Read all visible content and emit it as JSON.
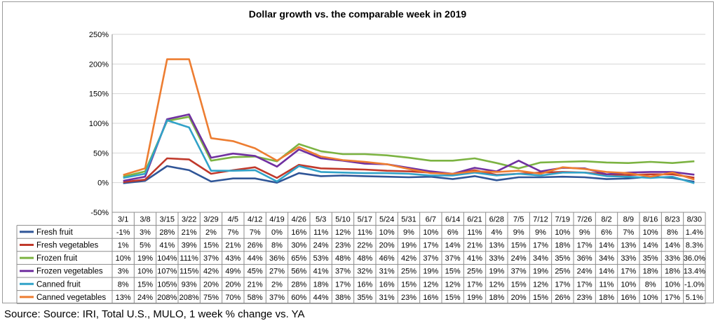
{
  "source": "Source: Source: IRI, Total U.S., MULO, 1 week % change vs. YA",
  "chart_data": {
    "type": "line",
    "title": "Dollar growth vs. the comparable week in 2019",
    "ylim": [
      -50,
      250
    ],
    "yticks": [
      "-50%",
      "0%",
      "50%",
      "100%",
      "150%",
      "200%",
      "250%"
    ],
    "ytick_values": [
      -50,
      0,
      50,
      100,
      150,
      200,
      250
    ],
    "grid": true,
    "legend": "table-below",
    "categories": [
      "3/1",
      "3/8",
      "3/15",
      "3/22",
      "3/29",
      "4/5",
      "4/12",
      "4/19",
      "4/26",
      "5/3",
      "5/10",
      "5/17",
      "5/24",
      "5/31",
      "6/7",
      "6/14",
      "6/21",
      "6/28",
      "7/5",
      "7/12",
      "7/19",
      "7/26",
      "8/2",
      "8/9",
      "8/16",
      "8/23",
      "8/30"
    ],
    "series": [
      {
        "name": "Fresh fruit",
        "color": "#2f5597",
        "values": [
          -1,
          3,
          28,
          21,
          2,
          7,
          7,
          0,
          16,
          11,
          12,
          11,
          10,
          9,
          10,
          6,
          11,
          4,
          9,
          9,
          10,
          9,
          6,
          7,
          10,
          8,
          1.4
        ],
        "labels": [
          "-1%",
          "3%",
          "28%",
          "21%",
          "2%",
          "7%",
          "7%",
          "0%",
          "16%",
          "11%",
          "12%",
          "11%",
          "10%",
          "9%",
          "10%",
          "6%",
          "11%",
          "4%",
          "9%",
          "9%",
          "10%",
          "9%",
          "6%",
          "7%",
          "10%",
          "8%",
          "1.4%"
        ]
      },
      {
        "name": "Fresh vegetables",
        "color": "#c0392b",
        "values": [
          1,
          5,
          41,
          39,
          15,
          21,
          26,
          8,
          30,
          24,
          23,
          22,
          20,
          19,
          17,
          14,
          21,
          13,
          15,
          17,
          18,
          17,
          14,
          13,
          14,
          14,
          8.3
        ],
        "labels": [
          "1%",
          "5%",
          "41%",
          "39%",
          "15%",
          "21%",
          "26%",
          "8%",
          "30%",
          "24%",
          "23%",
          "22%",
          "20%",
          "19%",
          "17%",
          "14%",
          "21%",
          "13%",
          "15%",
          "17%",
          "18%",
          "17%",
          "14%",
          "13%",
          "14%",
          "14%",
          "8.3%"
        ]
      },
      {
        "name": "Frozen fruit",
        "color": "#7cb342",
        "values": [
          10,
          19,
          104,
          111,
          37,
          43,
          44,
          36,
          65,
          53,
          48,
          48,
          46,
          42,
          37,
          37,
          41,
          33,
          24,
          34,
          35,
          36,
          34,
          33,
          35,
          33,
          36.0
        ],
        "labels": [
          "10%",
          "19%",
          "104%",
          "111%",
          "37%",
          "43%",
          "44%",
          "36%",
          "65%",
          "53%",
          "48%",
          "48%",
          "46%",
          "42%",
          "37%",
          "37%",
          "41%",
          "33%",
          "24%",
          "34%",
          "35%",
          "36%",
          "34%",
          "33%",
          "35%",
          "33%",
          "36.0%"
        ]
      },
      {
        "name": "Frozen vegetables",
        "color": "#7030a0",
        "values": [
          3,
          10,
          107,
          115,
          42,
          49,
          45,
          27,
          56,
          41,
          37,
          32,
          31,
          25,
          19,
          15,
          25,
          19,
          37,
          19,
          25,
          24,
          14,
          17,
          18,
          18,
          13.4
        ],
        "labels": [
          "3%",
          "10%",
          "107%",
          "115%",
          "42%",
          "49%",
          "45%",
          "27%",
          "56%",
          "41%",
          "37%",
          "32%",
          "31%",
          "25%",
          "19%",
          "15%",
          "25%",
          "19%",
          "37%",
          "19%",
          "25%",
          "24%",
          "14%",
          "17%",
          "18%",
          "18%",
          "13.4%"
        ]
      },
      {
        "name": "Canned fruit",
        "color": "#31a2c8",
        "values": [
          8,
          15,
          105,
          93,
          20,
          20,
          21,
          2,
          28,
          18,
          17,
          16,
          16,
          15,
          12,
          12,
          17,
          12,
          15,
          12,
          17,
          17,
          11,
          10,
          8,
          10,
          -1.0
        ],
        "labels": [
          "8%",
          "15%",
          "105%",
          "93%",
          "20%",
          "20%",
          "21%",
          "2%",
          "28%",
          "18%",
          "17%",
          "16%",
          "16%",
          "15%",
          "12%",
          "12%",
          "17%",
          "12%",
          "15%",
          "12%",
          "17%",
          "17%",
          "11%",
          "10%",
          "8%",
          "10%",
          "-1.0%"
        ]
      },
      {
        "name": "Canned vegetables",
        "color": "#ed7d31",
        "values": [
          13,
          24,
          208,
          208,
          75,
          70,
          58,
          37,
          60,
          44,
          38,
          35,
          31,
          23,
          16,
          15,
          19,
          18,
          20,
          15,
          26,
          23,
          18,
          16,
          10,
          17,
          5.1
        ],
        "labels": [
          "13%",
          "24%",
          "208%",
          "208%",
          "75%",
          "70%",
          "58%",
          "37%",
          "60%",
          "44%",
          "38%",
          "35%",
          "31%",
          "23%",
          "16%",
          "15%",
          "19%",
          "18%",
          "20%",
          "15%",
          "26%",
          "23%",
          "18%",
          "16%",
          "10%",
          "17%",
          "5.1%"
        ]
      }
    ]
  }
}
